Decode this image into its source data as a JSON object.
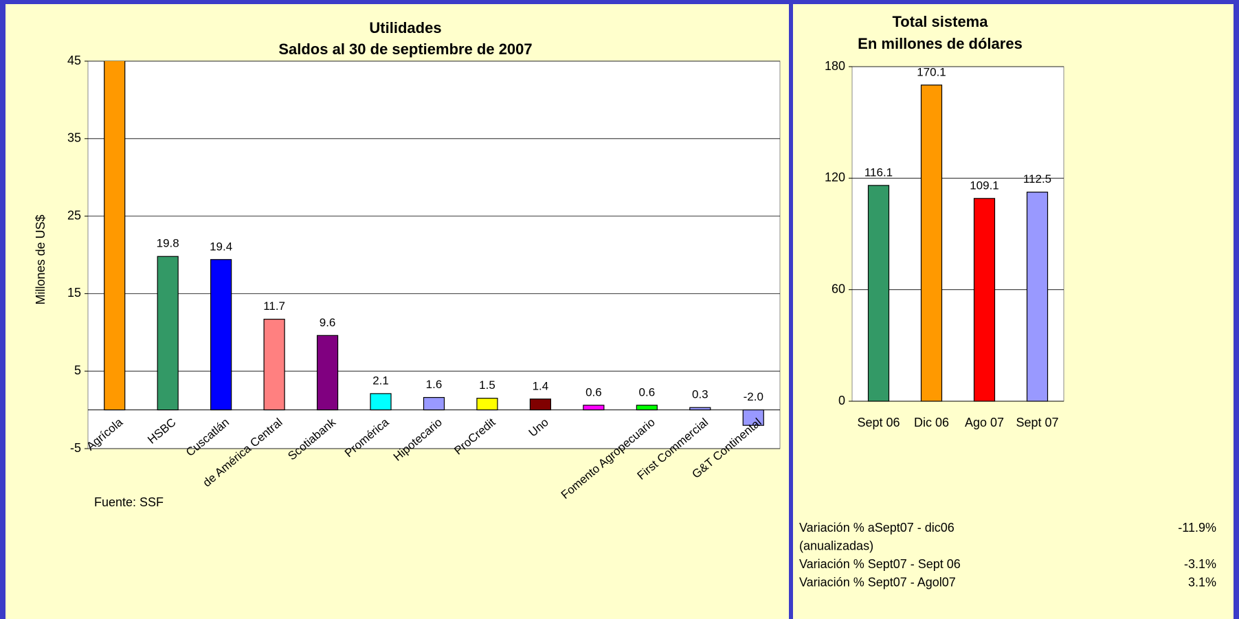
{
  "chart_data": [
    {
      "type": "bar",
      "title": "Utilidades",
      "subtitle": "Saldos al 30 de septiembre de 2007",
      "y_label": "Millones de US$",
      "categories": [
        "Agrícola",
        "HSBC",
        "Cuscatlán",
        "de América Central",
        "Scotiabank",
        "Promérica",
        "Hipotecario",
        "ProCredit",
        "Uno",
        null,
        "Fomento Agropecuario",
        "First Commercial",
        "G&T Continental"
      ],
      "values": [
        45.9,
        19.8,
        19.4,
        11.7,
        9.6,
        2.1,
        1.6,
        1.5,
        1.4,
        0.6,
        0.6,
        0.3,
        -2
      ],
      "value_labels": [
        null,
        "19.8",
        "19.4",
        "11.7",
        "9.6",
        "2.1",
        "1.6",
        "1.5",
        "1.4",
        "0.6",
        "0.6",
        "0.3",
        "-2.0"
      ],
      "colors": [
        "#ff9900",
        "#339966",
        "#0000ff",
        "#ff8080",
        "#800080",
        "#00ffff",
        "#9999ff",
        "#ffff00",
        "#800000",
        "#ff00ff",
        "#00ff00",
        "#9999ff",
        "#9999ff"
      ],
      "ylim": [
        -5,
        45
      ],
      "yticks": [
        -5,
        5,
        15,
        25,
        35,
        45
      ],
      "grid": true
    },
    {
      "type": "bar",
      "title": "Total sistema",
      "subtitle": "En millones de dólares",
      "categories": [
        "Sept 06",
        "Dic 06",
        "Ago 07",
        "Sept 07"
      ],
      "values": [
        116.1,
        170.1,
        109.1,
        112.5
      ],
      "colors": [
        "#339966",
        "#ff9900",
        "#ff0000",
        "#9999ff"
      ],
      "ylim": [
        0,
        180
      ],
      "yticks": [
        0,
        60,
        120,
        180
      ],
      "grid": true
    }
  ],
  "source": "Fuente: SSF",
  "notes": [
    {
      "label": "Variación % aSept07 - dic06",
      "value": "-11.9%"
    },
    {
      "label": "(anualizadas)"
    },
    {
      "label": "Variación % Sept07 - Sept 06",
      "value": "-3.1%"
    },
    {
      "label": "Variación %  Sept07 - Agol07",
      "value": "3.1%"
    }
  ]
}
